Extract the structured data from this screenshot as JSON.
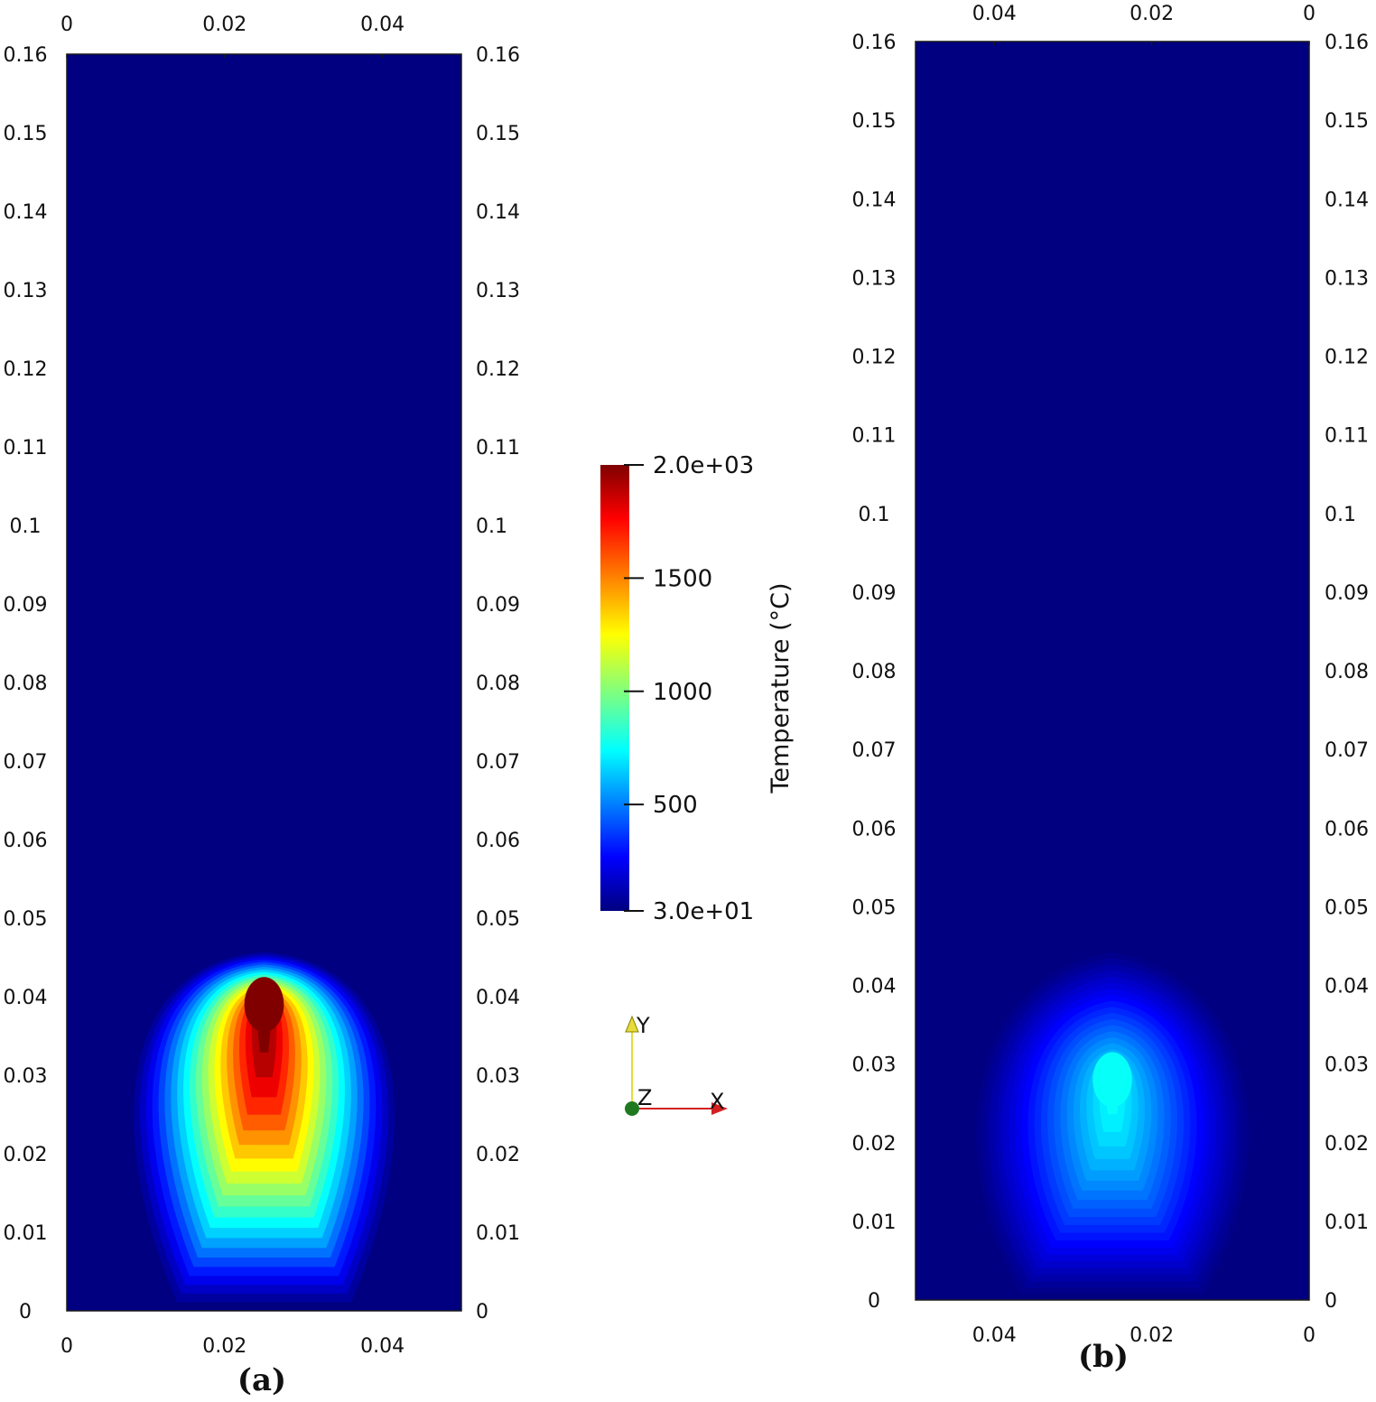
{
  "chart_data": [
    {
      "type": "heatmap",
      "panel_label": "(a)",
      "x_ticks_bottom": [
        "0",
        "0.02",
        "0.04"
      ],
      "x_ticks_top": [
        "0",
        "0.02",
        "0.04"
      ],
      "y_ticks_left": [
        "0",
        "0.01",
        "0.02",
        "0.03",
        "0.04",
        "0.05",
        "0.06",
        "0.07",
        "0.08",
        "0.09",
        "0.1",
        "0.11",
        "0.12",
        "0.13",
        "0.14",
        "0.15",
        "0.16"
      ],
      "y_ticks_right": [
        "0",
        "0.01",
        "0.02",
        "0.03",
        "0.04",
        "0.05",
        "0.06",
        "0.07",
        "0.08",
        "0.09",
        "0.1",
        "0.11",
        "0.12",
        "0.13",
        "0.14",
        "0.15",
        "0.16"
      ],
      "xlim": [
        0,
        0.05
      ],
      "ylim": [
        0,
        0.16
      ],
      "x_direction": "normal",
      "field": "Temperature",
      "hotspot": {
        "x": 0.025,
        "y": 0.039,
        "peak": 2000
      },
      "plume": {
        "base_halfwidth": 0.021,
        "top_y": 0.046,
        "base_value": 330
      },
      "background_value": 30
    },
    {
      "type": "heatmap",
      "panel_label": "(b)",
      "x_ticks_bottom": [
        "0.04",
        "0.02",
        "0"
      ],
      "x_ticks_top": [
        "0.04",
        "0.02",
        "0"
      ],
      "y_ticks_left": [
        "0",
        "0.01",
        "0.02",
        "0.03",
        "0.04",
        "0.05",
        "0.06",
        "0.07",
        "0.08",
        "0.09",
        "0.1",
        "0.11",
        "0.12",
        "0.13",
        "0.14",
        "0.15",
        "0.16"
      ],
      "y_ticks_right": [
        "0",
        "0.01",
        "0.02",
        "0.03",
        "0.04",
        "0.05",
        "0.06",
        "0.07",
        "0.08",
        "0.09",
        "0.1",
        "0.11",
        "0.12",
        "0.13",
        "0.14",
        "0.15",
        "0.16"
      ],
      "xlim": [
        0.05,
        0
      ],
      "ylim": [
        0,
        0.16
      ],
      "x_direction": "reversed",
      "field": "Temperature",
      "hotspot": {
        "x": 0.025,
        "y": 0.028,
        "peak": 780
      },
      "plume": {
        "base_halfwidth": 0.022,
        "top_y": 0.045,
        "base_value": 320
      },
      "background_value": 30
    }
  ],
  "colorbar": {
    "title": "Temperature  (°C)",
    "range": [
      30,
      2000
    ],
    "ticks": [
      {
        "value": 2000,
        "label": "2.0e+03"
      },
      {
        "value": 1500,
        "label": "1500"
      },
      {
        "value": 1000,
        "label": "1000"
      },
      {
        "value": 500,
        "label": "500"
      },
      {
        "value": 30,
        "label": "3.0e+01"
      }
    ],
    "colormap": "jet"
  },
  "axes_triad": {
    "x_label": "X",
    "y_label": "Y",
    "z_label": "Z",
    "x_color": "#d42020",
    "y_color": "#e6dc3c",
    "z_color": "#1f7a1f"
  }
}
